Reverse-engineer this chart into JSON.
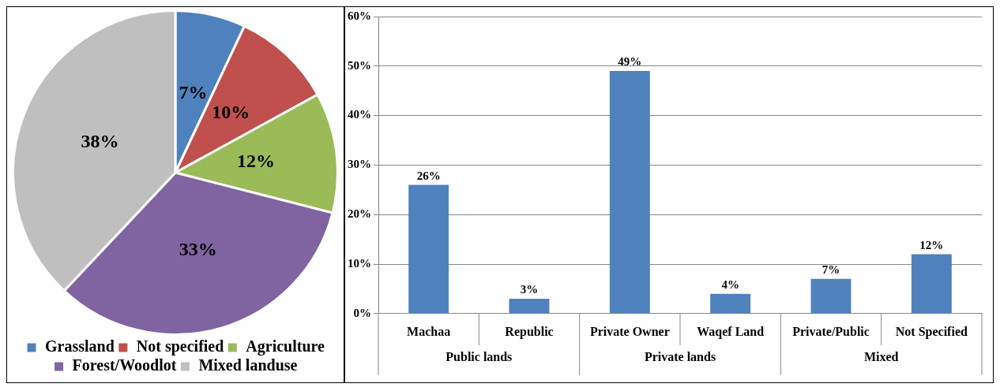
{
  "chart_data": [
    {
      "type": "pie",
      "categories": [
        "Grassland",
        "Not specified",
        "Agriculture",
        "Forest/Woodlot",
        "Mixed landuse"
      ],
      "values": [
        7,
        10,
        12,
        33,
        38
      ],
      "colors": [
        "#4f81bd",
        "#c0504d",
        "#9bbb59",
        "#8064a2",
        "#bfbfbf"
      ],
      "value_labels": [
        "7%",
        "10%",
        "12%",
        "33%",
        "38%"
      ],
      "legend": "bottom"
    },
    {
      "type": "bar",
      "categories": [
        "Machaa",
        "Republic",
        "Private Owner",
        "Waqef Land",
        "Private/Public",
        "Not Specified"
      ],
      "values": [
        26,
        3,
        49,
        4,
        7,
        12
      ],
      "color": "#4f81bd",
      "value_labels": [
        "26%",
        "3%",
        "49%",
        "4%",
        "7%",
        "12%"
      ],
      "ylim": [
        0,
        60
      ],
      "yticks": [
        {
          "value": 0,
          "label": "0%"
        },
        {
          "value": 10,
          "label": "10%"
        },
        {
          "value": 20,
          "label": "20%"
        },
        {
          "value": 30,
          "label": "30%"
        },
        {
          "value": 40,
          "label": "40%"
        },
        {
          "value": 50,
          "label": "50%"
        },
        {
          "value": 60,
          "label": "60%"
        }
      ],
      "grid": "y",
      "legend": false,
      "annotations": [
        "Public lands",
        "Private lands",
        "Mixed"
      ]
    }
  ]
}
